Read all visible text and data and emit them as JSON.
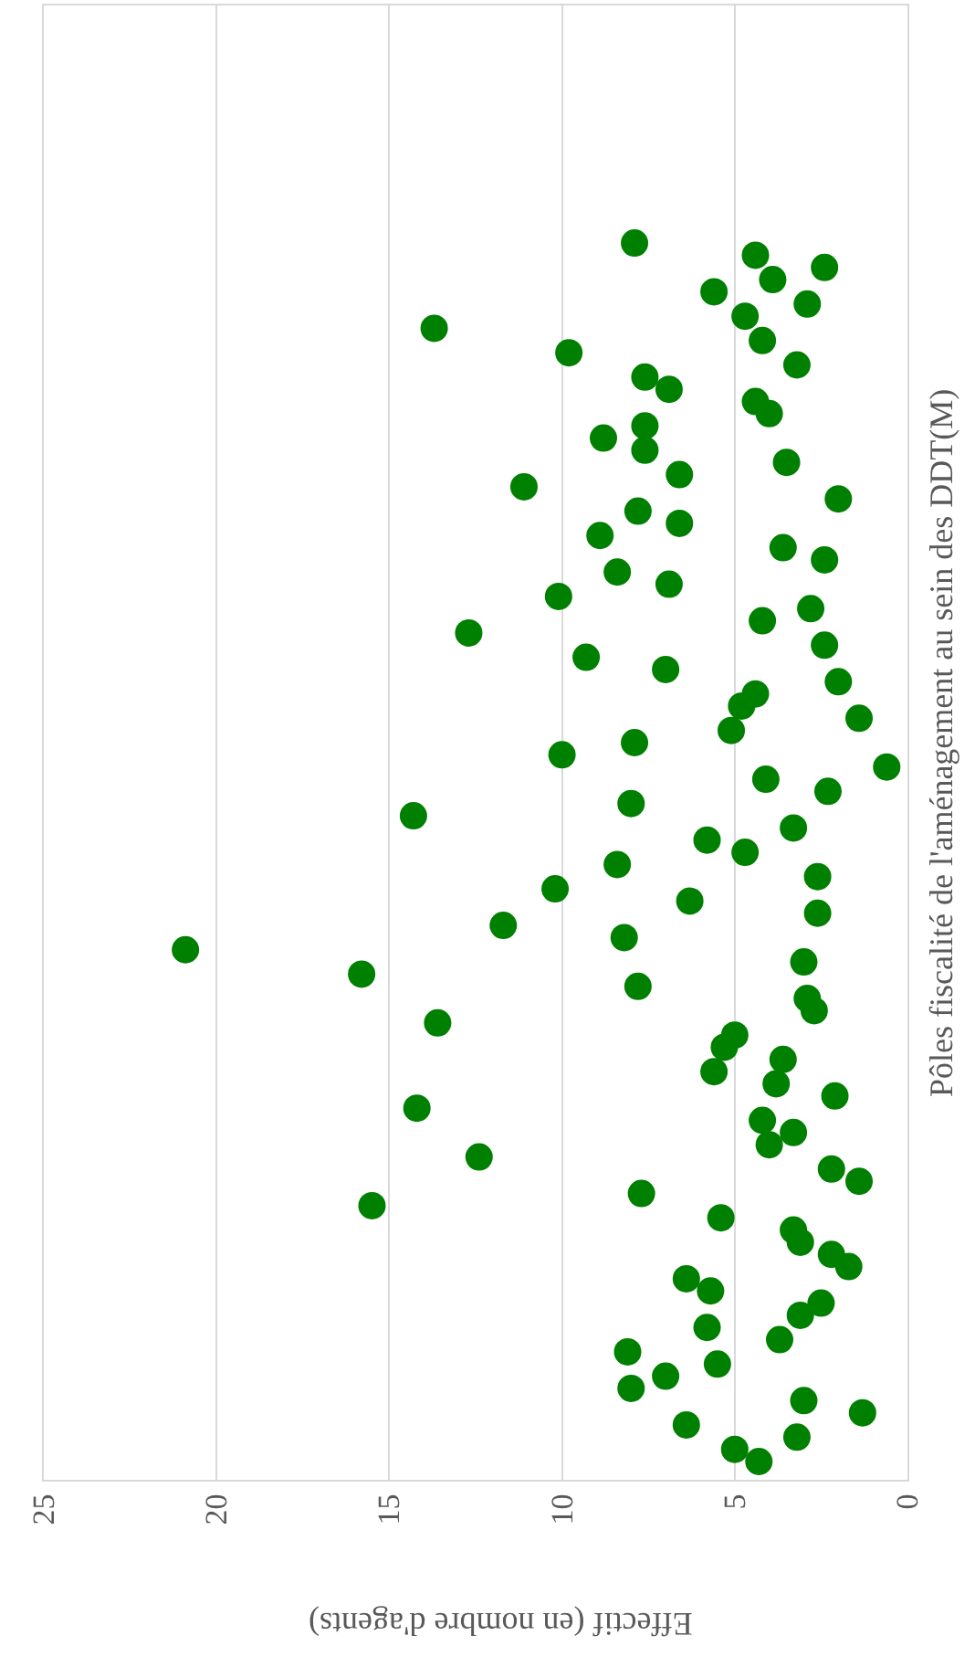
{
  "chart_data": {
    "type": "scatter",
    "orientation": "horizontal",
    "xlabel": "Effectif (en nombre d'agents)",
    "ylabel": "Pôles fiscalité de l'aménagement au sein des DDT(M)",
    "categories": [
      null,
      null,
      null,
      null,
      null,
      null,
      null,
      null,
      null,
      null,
      null,
      null,
      null,
      null,
      null,
      null,
      null,
      null,
      null,
      null,
      null,
      null,
      null,
      null,
      null,
      null,
      null,
      null,
      null,
      null,
      null,
      null,
      null,
      null,
      null,
      null,
      null,
      null,
      null,
      null,
      null,
      null,
      null,
      null,
      null,
      null,
      null,
      null,
      null,
      null,
      null,
      null,
      null,
      null,
      null,
      null,
      null,
      null,
      null,
      null,
      null,
      null,
      null,
      null,
      null,
      null,
      null,
      null,
      null,
      null,
      null,
      null,
      null,
      null,
      null,
      null,
      null,
      null,
      null,
      null,
      null,
      null,
      null,
      null,
      null,
      null,
      null,
      null,
      null,
      null,
      null,
      null,
      null,
      null,
      null,
      null,
      null,
      null,
      null,
      null,
      null,
      null,
      null,
      null,
      null,
      null,
      null,
      null,
      null,
      null,
      null,
      null,
      null,
      null,
      null,
      null,
      null,
      null,
      null,
      null,
      null
    ],
    "series": [
      {
        "color": "#008000",
        "values": [
          null,
          null,
          null,
          null,
          null,
          null,
          null,
          null,
          null,
          null,
          null,
          null,
          null,
          null,
          null,
          null,
          null,
          null,
          null,
          7.9,
          4.4,
          2.4,
          3.9,
          5.6,
          2.9,
          4.7,
          13.7,
          4.2,
          9.8,
          3.2,
          7.6,
          6.9,
          4.4,
          4.0,
          7.6,
          8.8,
          7.6,
          3.5,
          6.6,
          11.1,
          2.0,
          7.8,
          6.6,
          8.9,
          3.6,
          2.4,
          8.4,
          6.9,
          10.1,
          2.8,
          4.2,
          12.7,
          2.4,
          9.3,
          7.0,
          2.0,
          4.4,
          4.8,
          1.4,
          5.1,
          7.9,
          10.0,
          0.6,
          4.1,
          2.3,
          8.0,
          14.3,
          3.3,
          5.8,
          4.7,
          8.4,
          2.6,
          10.2,
          6.3,
          2.6,
          11.7,
          8.2,
          20.9,
          3.0,
          15.8,
          7.8,
          2.9,
          2.7,
          13.6,
          5.0,
          5.3,
          3.6,
          5.6,
          3.8,
          2.1,
          14.2,
          4.2,
          3.3,
          4.0,
          12.4,
          2.2,
          1.4,
          7.7,
          15.5,
          5.4,
          3.3,
          3.1,
          2.2,
          1.7,
          6.4,
          5.7,
          2.5,
          3.1,
          5.8,
          3.7,
          8.1,
          5.5,
          7.0,
          8.0,
          3.0,
          1.3,
          6.4,
          3.2,
          5.0,
          4.3,
          null
        ]
      }
    ],
    "xlim": [
      25,
      0
    ],
    "xticks": [
      0,
      5,
      10,
      15,
      20,
      25
    ],
    "tick_labels": "x",
    "grid": "x",
    "marker": "circle",
    "legend": false
  }
}
